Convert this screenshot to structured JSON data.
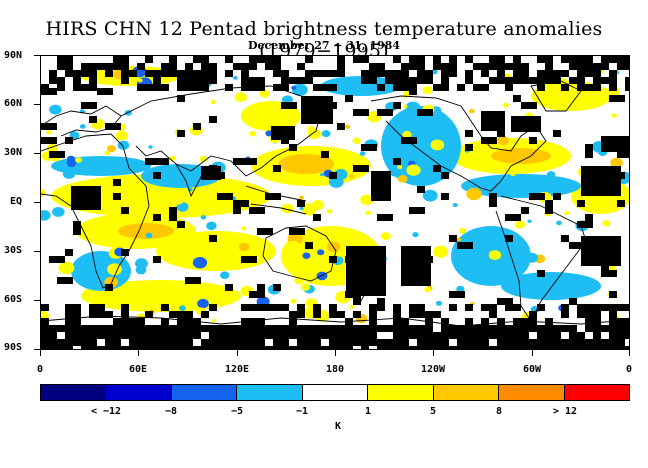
{
  "title": "HIRS CHN 12 Pentad brightness temperature anomalies (1979−1995)",
  "subtitle": "December 27 − 31, 1984",
  "y_axis": [
    "90N",
    "60N",
    "30N",
    "EQ",
    "30S",
    "60S",
    "90S"
  ],
  "x_axis": [
    "0",
    "60E",
    "120E",
    "180",
    "120W",
    "60W",
    "0"
  ],
  "colorbar": {
    "colors": [
      "#000080",
      "#0000cd",
      "#1464f0",
      "#1ebef5",
      "#ffffff",
      "#ffff00",
      "#ffc800",
      "#ff8c00",
      "#ff0000"
    ],
    "labels": [
      "< −12",
      "−8",
      "−5",
      "−1",
      "1",
      "5",
      "8",
      "> 12"
    ],
    "unit": "K"
  },
  "map": {
    "missing_color": "#000000",
    "land_outline": "coastlines"
  }
}
